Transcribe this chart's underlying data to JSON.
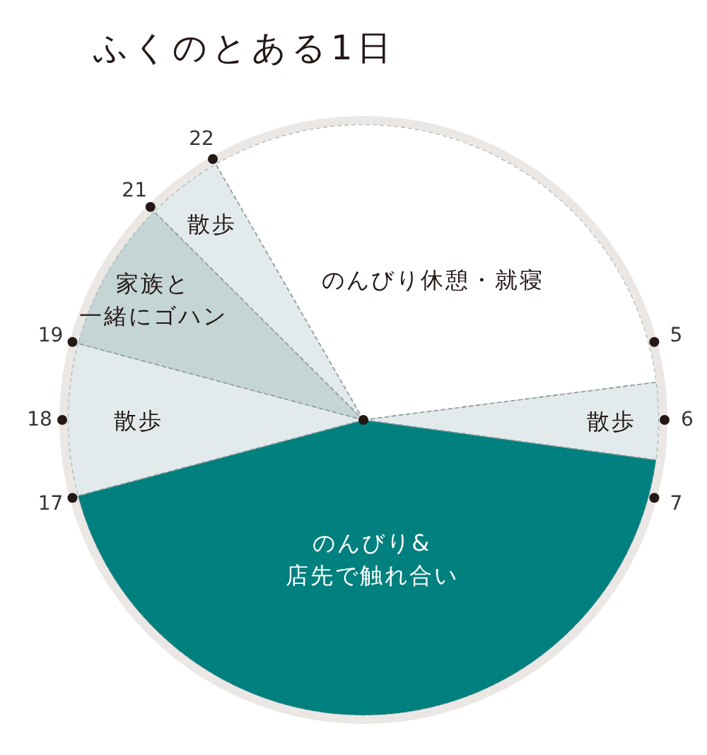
{
  "chart_data": {
    "type": "pie",
    "title": "ふくのとある1日",
    "categories": [
      "のんびり休憩・就寝",
      "散歩",
      "のんびり&店先で触れ合い",
      "散歩",
      "家族と一緒にゴハン",
      "散歩"
    ],
    "values": [
      31.3,
      4.2,
      43.7,
      8.3,
      8.3,
      4.2
    ],
    "colors": [
      "#ffffff",
      "#e2eaeb",
      "#00807e",
      "#e2eaeb",
      "#c5d5d6",
      "#e2eaeb"
    ],
    "annotations": [
      "5",
      "6",
      "7",
      "17",
      "18",
      "19",
      "21",
      "22"
    ]
  }
}
